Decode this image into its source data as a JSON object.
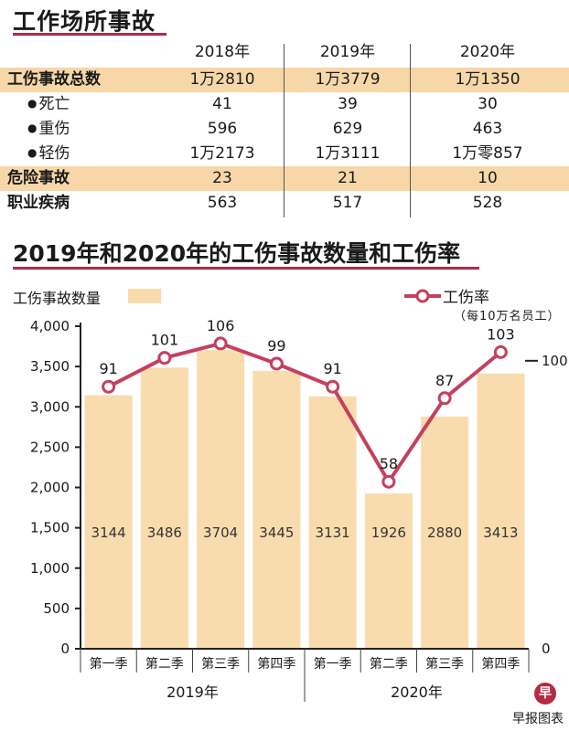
{
  "table": {
    "title": "工作场所事故",
    "years": [
      "2018年",
      "2019年",
      "2020年"
    ],
    "rows": [
      {
        "label": "工伤事故总数",
        "values": [
          "1万2810",
          "1万3779",
          "1万1350"
        ]
      },
      {
        "label": "死亡",
        "values": [
          "41",
          "39",
          "30"
        ]
      },
      {
        "label": "重伤",
        "values": [
          "596",
          "629",
          "463"
        ]
      },
      {
        "label": "轻伤",
        "values": [
          "1万2173",
          "1万3111",
          "1万零857"
        ]
      },
      {
        "label": "危险事故",
        "values": [
          "23",
          "21",
          "10"
        ]
      },
      {
        "label": "职业疾病",
        "values": [
          "563",
          "517",
          "528"
        ]
      }
    ]
  },
  "chart_data": {
    "type": "bar+line",
    "title": "2019年和2020年的工伤事故数量和工伤率",
    "categories": [
      "第一季",
      "第二季",
      "第三季",
      "第四季",
      "第一季",
      "第二季",
      "第三季",
      "第四季"
    ],
    "year_groups": [
      "2019年",
      "2020年"
    ],
    "series": [
      {
        "name": "工伤事故数量",
        "kind": "bar",
        "axis": "left",
        "values": [
          3144,
          3486,
          3704,
          3445,
          3131,
          1926,
          2880,
          3413
        ]
      },
      {
        "name": "工伤率",
        "kind": "line",
        "axis": "right",
        "values": [
          91,
          101,
          106,
          99,
          91,
          58,
          87,
          103
        ]
      }
    ],
    "left_axis": {
      "ticks": [
        "0",
        "500",
        "1,000",
        "1,500",
        "2,000",
        "2,500",
        "3,000",
        "3,500",
        "4,000"
      ],
      "ylim": [
        0,
        4000
      ]
    },
    "right_axis": {
      "ticks": [
        "0",
        "100"
      ],
      "ylim": [
        0,
        112
      ]
    },
    "legend": {
      "bar_label": "工伤事故数量",
      "line_label": "工伤率",
      "line_sub": "（每10万名员工）"
    }
  },
  "colors": {
    "bar": "#f9dcae",
    "line": "#c4405f",
    "accent": "#b52a45",
    "highlight": "#f7d7a8"
  },
  "credit": "早报图表",
  "logo_char": "早"
}
